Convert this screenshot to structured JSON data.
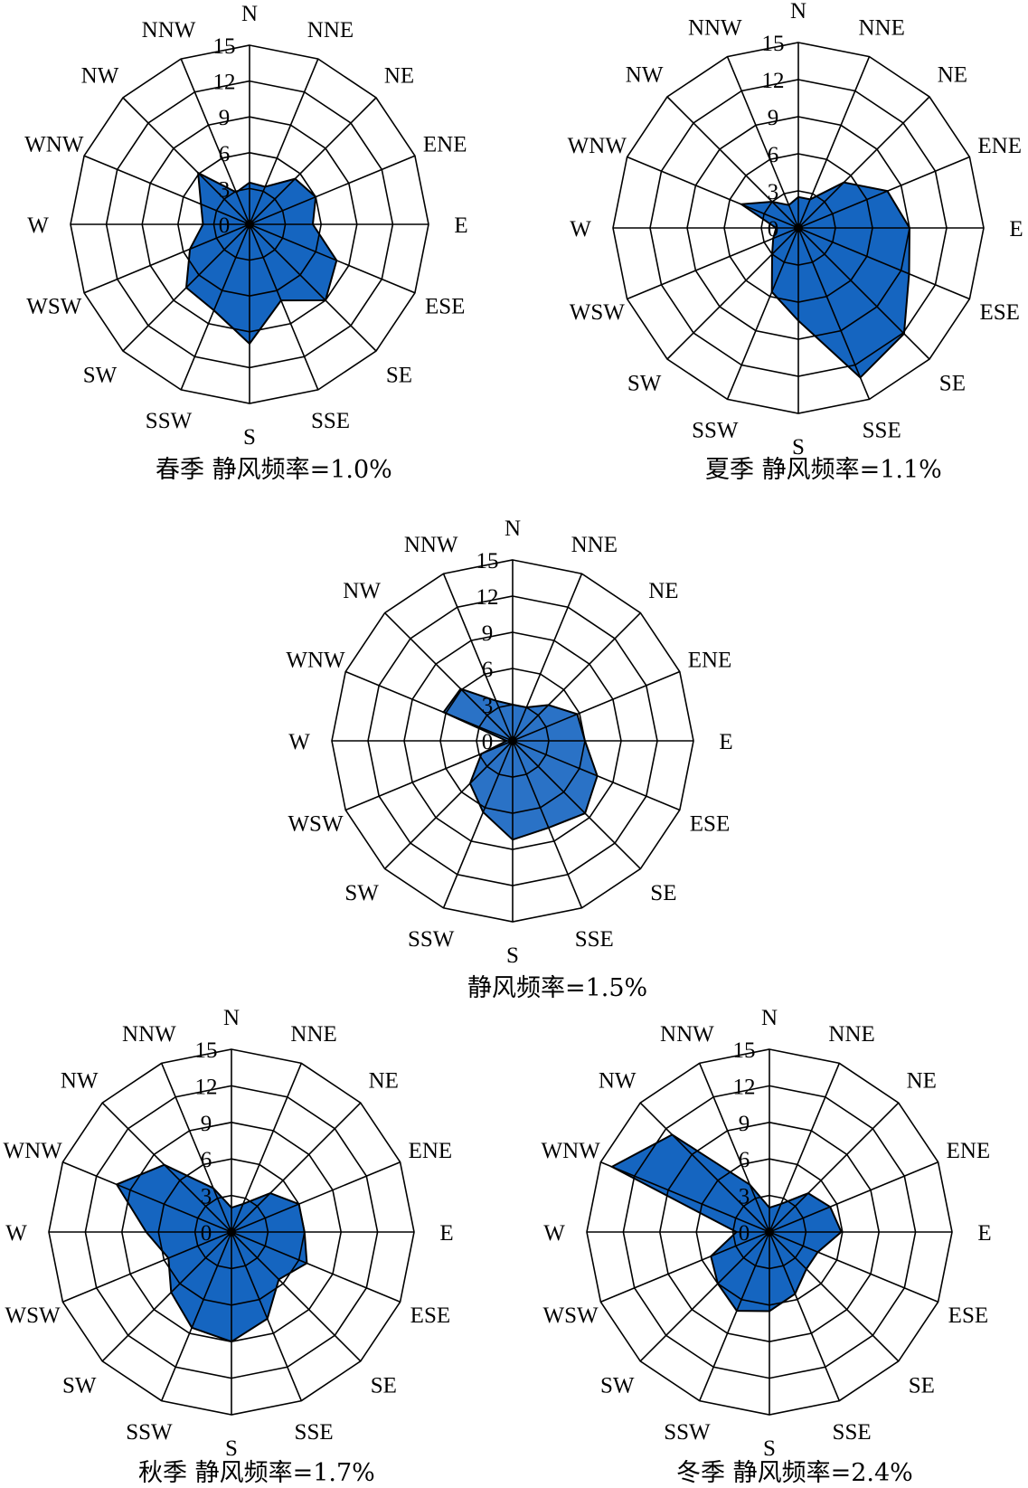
{
  "colors": {
    "fill": "#1565c0",
    "fill_annual": "#2a72c6",
    "line": "#000000",
    "bg": "#ffffff"
  },
  "chart_data": [
    {
      "type": "radar",
      "id": "spring",
      "caption": "春季 静风频率=1.0%",
      "directions": [
        "N",
        "NNE",
        "NE",
        "ENE",
        "E",
        "ESE",
        "SE",
        "SSE",
        "S",
        "SSW",
        "SW",
        "WSW",
        "W",
        "WNW",
        "NW",
        "NNW"
      ],
      "rings": [
        3,
        6,
        9,
        12,
        15
      ],
      "tick_labels": [
        "0",
        "3",
        "6",
        "9",
        "12",
        "15"
      ],
      "rmax": 15,
      "values": [
        3.5,
        3.4,
        5.4,
        6.0,
        5.3,
        7.9,
        9.0,
        6.9,
        10.0,
        7.8,
        7.5,
        5.4,
        3.9,
        4.4,
        6.1,
        2.9
      ]
    },
    {
      "type": "radar",
      "id": "summer",
      "caption": "夏季 静风频率=1.1%",
      "directions": [
        "N",
        "NNE",
        "NE",
        "ENE",
        "E",
        "ESE",
        "SE",
        "SSE",
        "S",
        "SSW",
        "SW",
        "WSW",
        "W",
        "WNW",
        "NW",
        "NNW"
      ],
      "rings": [
        3,
        6,
        9,
        12,
        15
      ],
      "tick_labels": [
        "0",
        "3",
        "6",
        "9",
        "12",
        "15"
      ],
      "rmax": 15,
      "values": [
        2.5,
        2.5,
        5.2,
        7.8,
        9.0,
        9.7,
        12.1,
        13.1,
        7.5,
        5.6,
        3.0,
        2.2,
        1.8,
        5.0,
        3.0,
        2.0
      ]
    },
    {
      "type": "radar",
      "id": "annual",
      "caption": "静风频率=1.5%",
      "directions": [
        "N",
        "NNE",
        "NE",
        "ENE",
        "E",
        "ESE",
        "SE",
        "SSE",
        "S",
        "SSW",
        "SW",
        "WSW",
        "W",
        "WNW",
        "NW",
        "NNW"
      ],
      "rings": [
        3,
        6,
        9,
        12,
        15
      ],
      "tick_labels": [
        "0",
        "3",
        "6",
        "9",
        "12",
        "15"
      ],
      "rmax": 15,
      "values": [
        3.0,
        3.0,
        4.2,
        5.8,
        6.0,
        7.6,
        8.5,
        7.8,
        8.2,
        6.4,
        5.0,
        2.8,
        0.5,
        6.2,
        6.1,
        3.6
      ]
    },
    {
      "type": "radar",
      "id": "autumn",
      "caption": "秋季 静风频率=1.7%",
      "directions": [
        "N",
        "NNE",
        "NE",
        "ENE",
        "E",
        "ESE",
        "SE",
        "SSE",
        "S",
        "SSW",
        "SW",
        "WSW",
        "W",
        "WNW",
        "NW",
        "NNW"
      ],
      "rings": [
        3,
        6,
        9,
        12,
        15
      ],
      "tick_labels": [
        "0",
        "3",
        "6",
        "9",
        "12",
        "15"
      ],
      "rmax": 15,
      "values": [
        2.0,
        2.5,
        4.5,
        6.0,
        6.0,
        6.7,
        5.5,
        7.7,
        9.0,
        8.5,
        7.0,
        5.6,
        7.0,
        10.2,
        7.8,
        3.9
      ]
    },
    {
      "type": "radar",
      "id": "winter",
      "caption": "冬季 静风频率=2.4%",
      "directions": [
        "N",
        "NNE",
        "NE",
        "ENE",
        "E",
        "ESE",
        "SE",
        "SSE",
        "S",
        "SSW",
        "SW",
        "WSW",
        "W",
        "WNW",
        "NW",
        "NNW"
      ],
      "rings": [
        3,
        6,
        9,
        12,
        15
      ],
      "tick_labels": [
        "0",
        "3",
        "6",
        "9",
        "12",
        "15"
      ],
      "rmax": 15,
      "values": [
        2.0,
        2.5,
        4.5,
        5.4,
        5.9,
        4.3,
        4.3,
        5.5,
        6.5,
        7.0,
        6.0,
        5.2,
        2.7,
        14.0,
        11.3,
        4.2
      ]
    }
  ]
}
